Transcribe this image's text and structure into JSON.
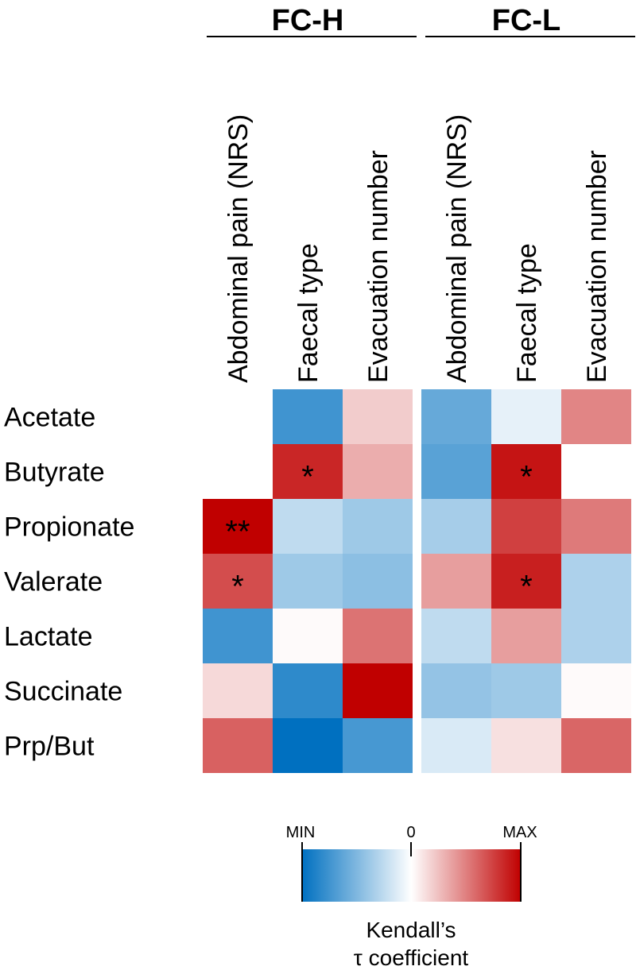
{
  "chart_data": {
    "type": "heatmap",
    "title": "",
    "groups": [
      {
        "name": "FC-H",
        "columns": [
          "Abdominal pain (NRS)",
          "Faecal type",
          "Evacuation number"
        ],
        "cells": [
          {
            "row": "Acetate",
            "values": [
              0.0,
              -0.75,
              0.2
            ],
            "sig": [
              "",
              "",
              ""
            ]
          },
          {
            "row": "Butyrate",
            "values": [
              0.0,
              0.85,
              0.32
            ],
            "sig": [
              "",
              "*",
              ""
            ]
          },
          {
            "row": "Propionate",
            "values": [
              1.0,
              -0.25,
              -0.38
            ],
            "sig": [
              "**",
              "",
              ""
            ]
          },
          {
            "row": "Valerate",
            "values": [
              0.7,
              -0.38,
              -0.45
            ],
            "sig": [
              "*",
              "",
              ""
            ]
          },
          {
            "row": "Lactate",
            "values": [
              -0.75,
              0.02,
              0.55
            ],
            "sig": [
              "",
              "",
              ""
            ]
          },
          {
            "row": "Succinate",
            "values": [
              0.15,
              -0.82,
              1.0
            ],
            "sig": [
              "",
              "",
              ""
            ]
          },
          {
            "row": "Prp/But",
            "values": [
              0.62,
              -1.0,
              -0.72
            ],
            "sig": [
              "",
              "",
              ""
            ]
          }
        ]
      },
      {
        "name": "FC-L",
        "columns": [
          "Abdominal pain (NRS)",
          "Faecal type",
          "Evacuation number"
        ],
        "cells": [
          {
            "row": "Acetate",
            "values": [
              -0.6,
              -0.1,
              0.48
            ],
            "sig": [
              "",
              "",
              ""
            ]
          },
          {
            "row": "Butyrate",
            "values": [
              -0.65,
              0.92,
              0.0
            ],
            "sig": [
              "",
              "*",
              ""
            ]
          },
          {
            "row": "Propionate",
            "values": [
              -0.35,
              0.75,
              0.52
            ],
            "sig": [
              "",
              "",
              ""
            ]
          },
          {
            "row": "Valerate",
            "values": [
              0.38,
              0.88,
              -0.32
            ],
            "sig": [
              "",
              "*",
              ""
            ]
          },
          {
            "row": "Lactate",
            "values": [
              -0.25,
              0.38,
              -0.32
            ],
            "sig": [
              "",
              "",
              ""
            ]
          },
          {
            "row": "Succinate",
            "values": [
              -0.42,
              -0.38,
              0.02
            ],
            "sig": [
              "",
              "",
              ""
            ]
          },
          {
            "row": "Prp/But",
            "values": [
              -0.15,
              0.12,
              0.6
            ],
            "sig": [
              "",
              "",
              ""
            ]
          }
        ]
      }
    ],
    "rows": [
      "Acetate",
      "Butyrate",
      "Propionate",
      "Valerate",
      "Lactate",
      "Succinate",
      "Prp/But"
    ],
    "colorscale": {
      "min_label": "MIN",
      "zero_label": "0",
      "max_label": "MAX",
      "min_color": "#0070c0",
      "zero_color": "#ffffff",
      "max_color": "#c00000",
      "range": [
        -1,
        1
      ]
    },
    "legend_title": [
      "Kendall’s",
      "τ coefficient"
    ]
  }
}
